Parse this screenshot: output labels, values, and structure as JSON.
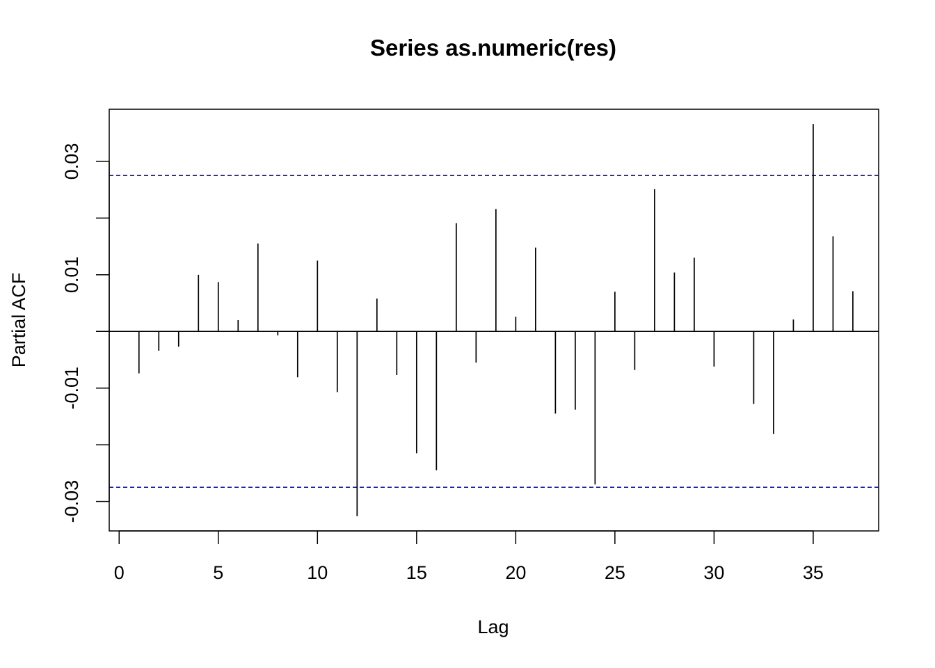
{
  "chart_data": {
    "type": "bar",
    "title": "Series  as.numeric(res)",
    "xlabel": "Lag",
    "ylabel": "Partial ACF",
    "xlim": [
      -0.5,
      38.3
    ],
    "ylim": [
      -0.0352,
      0.0392
    ],
    "x_ticks": [
      0,
      5,
      10,
      15,
      20,
      25,
      30,
      35
    ],
    "x_tick_labels": [
      "0",
      "5",
      "10",
      "15",
      "20",
      "25",
      "30",
      "35"
    ],
    "y_ticks": [
      -0.03,
      -0.02,
      -0.01,
      0,
      0.01,
      0.02,
      0.03
    ],
    "y_tick_labels": [
      "-0.03",
      "",
      "-0.01",
      "",
      "0.01",
      "",
      "0.03"
    ],
    "confidence_bounds": [
      0.0275,
      -0.0275
    ],
    "confidence_color": "#0000ff",
    "lags": [
      1,
      2,
      3,
      4,
      5,
      6,
      7,
      8,
      9,
      10,
      11,
      12,
      13,
      14,
      15,
      16,
      17,
      18,
      19,
      20,
      21,
      22,
      23,
      24,
      25,
      26,
      27,
      28,
      29,
      30,
      31,
      32,
      33,
      34,
      35,
      36,
      37
    ],
    "values": [
      -0.0074,
      -0.0034,
      -0.0027,
      0.01,
      0.0087,
      0.002,
      0.0155,
      -0.0007,
      -0.0081,
      0.0125,
      -0.0107,
      -0.0326,
      0.0058,
      -0.0077,
      -0.0215,
      -0.0245,
      0.0191,
      -0.0055,
      0.0216,
      0.0026,
      0.0148,
      -0.0145,
      -0.0138,
      -0.027,
      0.007,
      -0.0068,
      0.0251,
      0.0104,
      0.013,
      -0.0062,
      0.0,
      -0.0128,
      -0.0181,
      0.0021,
      0.0366,
      0.0168,
      0.0071
    ],
    "grid": false
  }
}
